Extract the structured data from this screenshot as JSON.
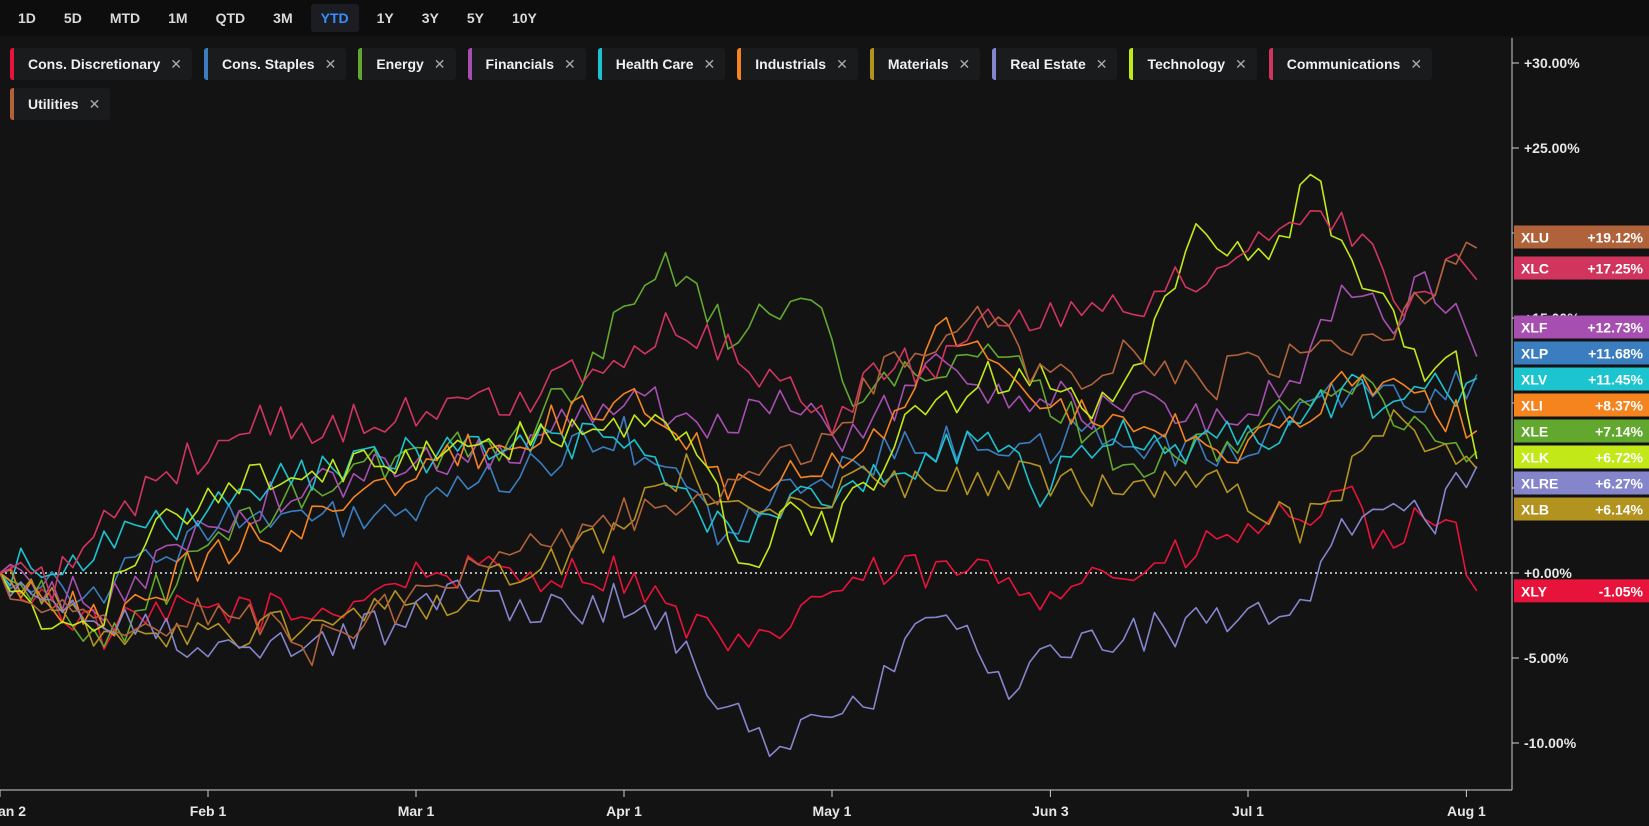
{
  "ranges": [
    "1D",
    "5D",
    "MTD",
    "1M",
    "QTD",
    "3M",
    "YTD",
    "1Y",
    "3Y",
    "5Y",
    "10Y"
  ],
  "active_range": "YTD",
  "chart_data": {
    "type": "line",
    "y_ticks": [
      "+30.00%",
      "+25.00%",
      "+20.00%",
      "+15.00%",
      "+10.00%",
      "+5.00%",
      "+0.00%",
      "-5.00%",
      "-10.00%"
    ],
    "y_tick_values": [
      30,
      25,
      20,
      15,
      10,
      5,
      0,
      -5,
      -10
    ],
    "ylim": [
      -12.5,
      33.5
    ],
    "x_ticks": [
      "an 2",
      "Feb 1",
      "Mar 1",
      "Apr 1",
      "May 1",
      "Jun 3",
      "Jul 1",
      "Aug 1"
    ],
    "x_tick_positions": [
      0,
      20,
      40,
      60,
      80,
      101,
      120,
      141
    ],
    "n_points": 143,
    "series": [
      {
        "name": "Cons. Discretionary",
        "ticker": "XLY",
        "color": "#e8133a",
        "last": "-1.05%",
        "anchors": [
          [
            0,
            0
          ],
          [
            10,
            -3.5
          ],
          [
            20,
            -2
          ],
          [
            30,
            -2.5
          ],
          [
            40,
            0
          ],
          [
            50,
            0
          ],
          [
            60,
            0
          ],
          [
            65,
            -2.5
          ],
          [
            72,
            -5
          ],
          [
            78,
            -1.5
          ],
          [
            85,
            0
          ],
          [
            95,
            0
          ],
          [
            100,
            -1
          ],
          [
            105,
            0
          ],
          [
            110,
            0
          ],
          [
            118,
            2
          ],
          [
            125,
            3.5
          ],
          [
            130,
            4
          ],
          [
            134,
            0.5
          ],
          [
            137,
            4
          ],
          [
            139,
            3.5
          ],
          [
            142,
            -1.05
          ]
        ]
      },
      {
        "name": "Cons. Staples",
        "ticker": "XLP",
        "color": "#3b7ec0",
        "last": "+11.68%",
        "anchors": [
          [
            0,
            0
          ],
          [
            10,
            -1
          ],
          [
            20,
            3
          ],
          [
            30,
            3
          ],
          [
            40,
            3.5
          ],
          [
            50,
            6
          ],
          [
            60,
            8
          ],
          [
            65,
            5.5
          ],
          [
            70,
            2
          ],
          [
            75,
            4.5
          ],
          [
            80,
            6
          ],
          [
            85,
            7
          ],
          [
            90,
            7.5
          ],
          [
            95,
            8
          ],
          [
            100,
            7
          ],
          [
            105,
            8.5
          ],
          [
            110,
            7.5
          ],
          [
            115,
            7
          ],
          [
            120,
            7
          ],
          [
            125,
            10
          ],
          [
            130,
            11
          ],
          [
            135,
            10
          ],
          [
            140,
            11
          ],
          [
            142,
            11.68
          ]
        ]
      },
      {
        "name": "Energy",
        "ticker": "XLE",
        "color": "#62a82e",
        "last": "+7.14%",
        "anchors": [
          [
            0,
            0
          ],
          [
            10,
            -4
          ],
          [
            20,
            1.5
          ],
          [
            30,
            5
          ],
          [
            40,
            7
          ],
          [
            50,
            8
          ],
          [
            58,
            13
          ],
          [
            62,
            18
          ],
          [
            66,
            17.5
          ],
          [
            70,
            14
          ],
          [
            75,
            16
          ],
          [
            79,
            15
          ],
          [
            82,
            11
          ],
          [
            90,
            11.5
          ],
          [
            95,
            13
          ],
          [
            100,
            11
          ],
          [
            105,
            8
          ],
          [
            110,
            6
          ],
          [
            115,
            7
          ],
          [
            120,
            8
          ],
          [
            125,
            10.5
          ],
          [
            130,
            11
          ],
          [
            135,
            9
          ],
          [
            140,
            8
          ],
          [
            142,
            7.14
          ]
        ]
      },
      {
        "name": "Financials",
        "ticker": "XLF",
        "color": "#a74fb0",
        "last": "+12.73%",
        "anchors": [
          [
            0,
            0
          ],
          [
            10,
            -2
          ],
          [
            20,
            3
          ],
          [
            30,
            5
          ],
          [
            40,
            6.5
          ],
          [
            50,
            7.5
          ],
          [
            60,
            10.5
          ],
          [
            68,
            9
          ],
          [
            75,
            10
          ],
          [
            80,
            8
          ],
          [
            85,
            9.5
          ],
          [
            90,
            12
          ],
          [
            95,
            11
          ],
          [
            100,
            10.5
          ],
          [
            105,
            9.5
          ],
          [
            110,
            10
          ],
          [
            115,
            9
          ],
          [
            120,
            9.5
          ],
          [
            125,
            12
          ],
          [
            130,
            17
          ],
          [
            134,
            15
          ],
          [
            137,
            17
          ],
          [
            140,
            15
          ],
          [
            142,
            12.73
          ]
        ]
      },
      {
        "name": "Health Care",
        "ticker": "XLV",
        "color": "#1bc4cf",
        "last": "+11.45%",
        "anchors": [
          [
            0,
            0
          ],
          [
            5,
            1
          ],
          [
            10,
            1.5
          ],
          [
            20,
            3.5
          ],
          [
            30,
            6
          ],
          [
            40,
            7
          ],
          [
            50,
            7.5
          ],
          [
            60,
            8
          ],
          [
            65,
            5
          ],
          [
            70,
            2.5
          ],
          [
            75,
            3.5
          ],
          [
            80,
            5
          ],
          [
            90,
            7
          ],
          [
            95,
            8
          ],
          [
            100,
            4.5
          ],
          [
            105,
            7.5
          ],
          [
            110,
            8
          ],
          [
            115,
            7.5
          ],
          [
            120,
            8
          ],
          [
            125,
            9
          ],
          [
            130,
            10.5
          ],
          [
            135,
            10
          ],
          [
            140,
            11
          ],
          [
            142,
            11.45
          ]
        ]
      },
      {
        "name": "Industrials",
        "ticker": "XLI",
        "color": "#f5841f",
        "last": "+8.37%",
        "anchors": [
          [
            0,
            0
          ],
          [
            10,
            -3
          ],
          [
            20,
            1
          ],
          [
            30,
            3
          ],
          [
            40,
            6
          ],
          [
            50,
            8
          ],
          [
            60,
            10.5
          ],
          [
            65,
            9
          ],
          [
            70,
            5.5
          ],
          [
            75,
            6
          ],
          [
            80,
            7
          ],
          [
            85,
            8
          ],
          [
            90,
            14.5
          ],
          [
            95,
            13
          ],
          [
            100,
            10
          ],
          [
            105,
            9
          ],
          [
            110,
            9.5
          ],
          [
            115,
            8
          ],
          [
            120,
            7
          ],
          [
            125,
            9
          ],
          [
            130,
            12
          ],
          [
            135,
            10
          ],
          [
            140,
            9
          ],
          [
            142,
            8.37
          ]
        ]
      },
      {
        "name": "Materials",
        "ticker": "XLB",
        "color": "#b39320",
        "last": "+6.14%",
        "anchors": [
          [
            0,
            0
          ],
          [
            10,
            -4
          ],
          [
            20,
            -3.5
          ],
          [
            30,
            -3
          ],
          [
            40,
            -2
          ],
          [
            50,
            0
          ],
          [
            58,
            2
          ],
          [
            62,
            5
          ],
          [
            66,
            6
          ],
          [
            70,
            3
          ],
          [
            75,
            4.5
          ],
          [
            80,
            5
          ],
          [
            85,
            5.5
          ],
          [
            90,
            5
          ],
          [
            100,
            5.5
          ],
          [
            105,
            5
          ],
          [
            110,
            5
          ],
          [
            115,
            5.5
          ],
          [
            120,
            4
          ],
          [
            125,
            2.5
          ],
          [
            130,
            6
          ],
          [
            135,
            9
          ],
          [
            140,
            6.5
          ],
          [
            142,
            6.14
          ]
        ]
      },
      {
        "name": "Real Estate",
        "ticker": "XLRE",
        "color": "#8585cc",
        "last": "+6.27%",
        "anchors": [
          [
            0,
            0
          ],
          [
            5,
            -1.5
          ],
          [
            10,
            -3
          ],
          [
            20,
            -4
          ],
          [
            30,
            -4.5
          ],
          [
            40,
            -2.5
          ],
          [
            45,
            -0.5
          ],
          [
            50,
            -2
          ],
          [
            55,
            -2.5
          ],
          [
            60,
            -1.5
          ],
          [
            65,
            -4
          ],
          [
            70,
            -8
          ],
          [
            74,
            -10
          ],
          [
            80,
            -8
          ],
          [
            85,
            -6.5
          ],
          [
            90,
            -2.5
          ],
          [
            95,
            -5
          ],
          [
            98,
            -7.5
          ],
          [
            100,
            -4.5
          ],
          [
            105,
            -4
          ],
          [
            110,
            -3.5
          ],
          [
            115,
            -3
          ],
          [
            120,
            -3
          ],
          [
            125,
            -1.5
          ],
          [
            130,
            3
          ],
          [
            135,
            4.5
          ],
          [
            138,
            3.5
          ],
          [
            142,
            6.27
          ]
        ]
      },
      {
        "name": "Technology",
        "ticker": "XLK",
        "color": "#c2e817",
        "last": "+6.72%",
        "anchors": [
          [
            0,
            0
          ],
          [
            5,
            -4
          ],
          [
            10,
            -2.5
          ],
          [
            15,
            4
          ],
          [
            20,
            4
          ],
          [
            25,
            6
          ],
          [
            30,
            6
          ],
          [
            40,
            6.5
          ],
          [
            50,
            8
          ],
          [
            58,
            8
          ],
          [
            62,
            9.5
          ],
          [
            66,
            8
          ],
          [
            70,
            3
          ],
          [
            72,
            0.5
          ],
          [
            76,
            4
          ],
          [
            80,
            2
          ],
          [
            85,
            7
          ],
          [
            90,
            10
          ],
          [
            95,
            11.5
          ],
          [
            100,
            12
          ],
          [
            105,
            10
          ],
          [
            110,
            12.5
          ],
          [
            115,
            20
          ],
          [
            120,
            18
          ],
          [
            124,
            20
          ],
          [
            126,
            23.5
          ],
          [
            130,
            18
          ],
          [
            135,
            14
          ],
          [
            138,
            11
          ],
          [
            140,
            13
          ],
          [
            142,
            6.72
          ]
        ]
      },
      {
        "name": "Communications",
        "ticker": "XLC",
        "color": "#d1355e",
        "last": "+17.25%",
        "anchors": [
          [
            0,
            0
          ],
          [
            5,
            -1
          ],
          [
            10,
            3
          ],
          [
            15,
            5
          ],
          [
            20,
            7.5
          ],
          [
            25,
            9
          ],
          [
            30,
            8.5
          ],
          [
            40,
            9.5
          ],
          [
            50,
            10
          ],
          [
            55,
            12
          ],
          [
            60,
            13
          ],
          [
            65,
            14.5
          ],
          [
            70,
            13.5
          ],
          [
            75,
            11
          ],
          [
            80,
            9
          ],
          [
            85,
            12
          ],
          [
            90,
            12.5
          ],
          [
            95,
            15
          ],
          [
            100,
            14.5
          ],
          [
            105,
            16
          ],
          [
            110,
            16
          ],
          [
            115,
            17.5
          ],
          [
            120,
            19
          ],
          [
            125,
            21
          ],
          [
            130,
            20
          ],
          [
            135,
            15.5
          ],
          [
            140,
            18
          ],
          [
            142,
            17.25
          ]
        ]
      },
      {
        "name": "Utilities",
        "ticker": "XLU",
        "color": "#b0623a",
        "last": "+19.12%",
        "anchors": [
          [
            0,
            0
          ],
          [
            10,
            -3.5
          ],
          [
            20,
            -2
          ],
          [
            30,
            -4.5
          ],
          [
            40,
            -1.5
          ],
          [
            50,
            1.5
          ],
          [
            60,
            3.5
          ],
          [
            65,
            3
          ],
          [
            70,
            4.5
          ],
          [
            75,
            7
          ],
          [
            80,
            8
          ],
          [
            85,
            12
          ],
          [
            90,
            13.5
          ],
          [
            95,
            15
          ],
          [
            100,
            11.5
          ],
          [
            105,
            12
          ],
          [
            110,
            13
          ],
          [
            115,
            11
          ],
          [
            120,
            12
          ],
          [
            125,
            13
          ],
          [
            128,
            14.5
          ],
          [
            132,
            13
          ],
          [
            135,
            15
          ],
          [
            140,
            18
          ],
          [
            142,
            19.12
          ]
        ]
      }
    ],
    "end_labels_order": [
      "XLU",
      "XLC",
      "XLF",
      "XLP",
      "XLV",
      "XLI",
      "XLE",
      "XLK",
      "XLRE",
      "XLB",
      "XLY"
    ]
  }
}
